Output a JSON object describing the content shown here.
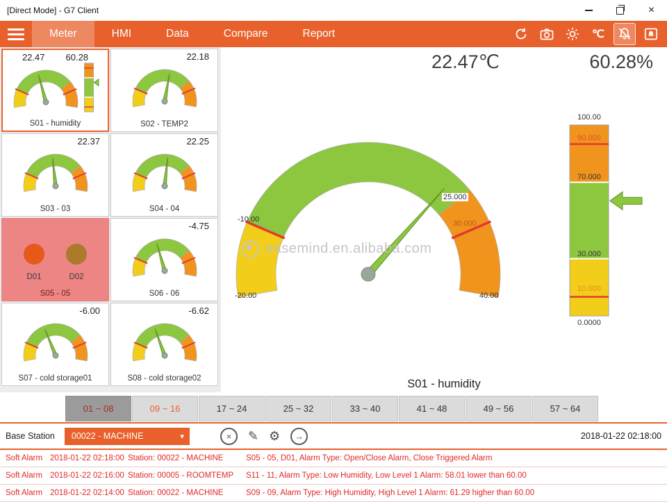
{
  "window": {
    "title": "[Direct Mode] - G7 Client"
  },
  "nav": {
    "items": [
      {
        "label": "Meter",
        "active": true
      },
      {
        "label": "HMI"
      },
      {
        "label": "Data"
      },
      {
        "label": "Compare"
      },
      {
        "label": "Report"
      }
    ],
    "unit_label": "℃"
  },
  "colors": {
    "accent": "#E8612C",
    "green": "#8DC63F",
    "orange": "#F0941E",
    "yellow": "#F2CE1B",
    "red": "#E23A2E",
    "alarm_text": "#E02828"
  },
  "tiles": [
    {
      "id": "S01",
      "label": "S01 - humidity",
      "values": [
        "22.47",
        "60.28"
      ],
      "needle_deg": 105,
      "has_bar": true,
      "bar_value": 60.28,
      "selected": true
    },
    {
      "id": "S02",
      "label": "S02 - TEMP2",
      "values": [
        "22.18"
      ],
      "needle_deg": 80
    },
    {
      "id": "S03",
      "label": "S03 - 03",
      "values": [
        "22.37"
      ],
      "needle_deg": 96
    },
    {
      "id": "S04",
      "label": "S04 - 04",
      "values": [
        "22.25"
      ],
      "needle_deg": 84
    },
    {
      "id": "S05",
      "label": "S05 - 05",
      "type": "digital",
      "alarm": true,
      "channels": [
        "D01",
        "D02"
      ]
    },
    {
      "id": "S06",
      "label": "S06 - 06",
      "values": [
        "-4.75"
      ],
      "needle_deg": 106
    },
    {
      "id": "S07",
      "label": "S07 - cold storage01",
      "values": [
        "-6.00"
      ],
      "needle_deg": 112
    },
    {
      "id": "S08",
      "label": "S08 - cold storage02",
      "values": [
        "-6.62"
      ],
      "needle_deg": 110
    }
  ],
  "main": {
    "temp_reading": "22.47℃",
    "humidity_reading": "60.28%",
    "gauge_title": "S01 - humidity",
    "watermark": "easemind.en.alibaba.com",
    "gauge": {
      "min": -20,
      "max": 40,
      "value": 22.47,
      "min_label": "-20.00",
      "max_label": "40.00",
      "low_label": "-10.00",
      "mid_label": "25.000",
      "high_label": "30.000"
    },
    "bar": {
      "min": 0,
      "max": 100,
      "value": 60.28,
      "top_label": "100.00",
      "l90": "90.000",
      "l70": "70.000",
      "l30": "30.000",
      "l10": "10.000",
      "bottom_label": "0.0000"
    }
  },
  "range_tabs": [
    {
      "label": "01 ~ 08",
      "state": "active"
    },
    {
      "label": "09 ~ 16",
      "state": "accent"
    },
    {
      "label": "17 ~ 24",
      "state": "normal"
    },
    {
      "label": "25 ~ 32",
      "state": "normal"
    },
    {
      "label": "33 ~ 40",
      "state": "normal"
    },
    {
      "label": "41 ~ 48",
      "state": "normal"
    },
    {
      "label": "49 ~ 56",
      "state": "normal"
    },
    {
      "label": "57 ~ 64",
      "state": "normal"
    }
  ],
  "station_bar": {
    "label": "Base Station",
    "station": "00022 - MACHINE",
    "timestamp": "2018-01-22 02:18:00"
  },
  "alarms": [
    {
      "type": "Soft Alarm",
      "time": "2018-01-22 02:18:00",
      "station": "Station: 00022 - MACHINE",
      "message": "S05 - 05, D01, Alarm Type: Open/Close Alarm, Close Triggered Alarm"
    },
    {
      "type": "Soft Alarm",
      "time": "2018-01-22 02:16:00",
      "station": "Station: 00005 - ROOMTEMP",
      "message": "S11 - 11, Alarm Type: Low Humidity, Low Level 1 Alarm: 58.01 lower than 60.00"
    },
    {
      "type": "Soft Alarm",
      "time": "2018-01-22 02:14:00",
      "station": "Station: 00022 - MACHINE",
      "message": "S09 - 09, Alarm Type: High Humidity, High Level 1 Alarm: 61.29 higher than 60.00"
    }
  ]
}
